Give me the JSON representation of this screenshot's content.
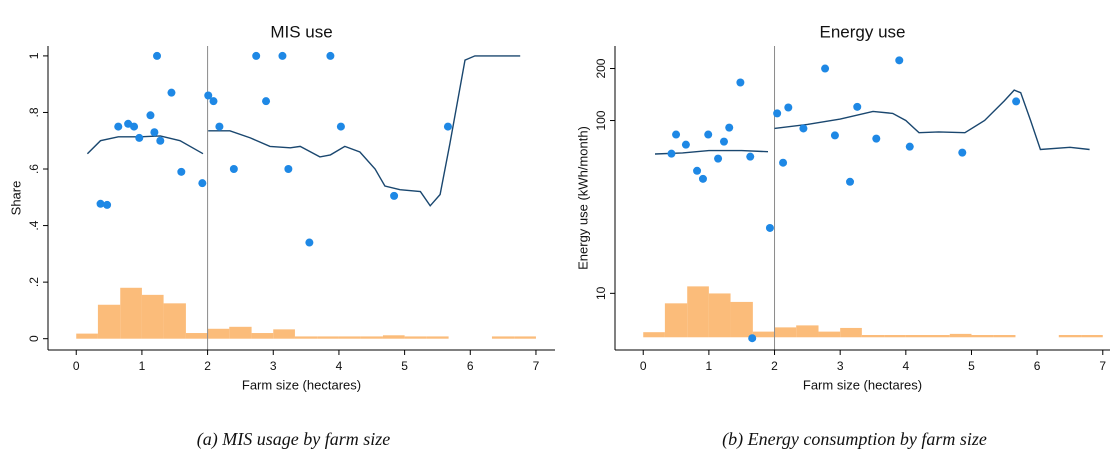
{
  "chart_data": [
    {
      "type": "scatter",
      "title": "MIS use",
      "xlabel": "Farm size (hectares)",
      "ylabel": "Share",
      "caption": "(a) MIS usage by farm size",
      "color": "#1e88e5",
      "x": [
        0.37,
        0.47,
        0.64,
        0.79,
        0.88,
        0.96,
        1.13,
        1.19,
        1.23,
        1.28,
        1.45,
        1.6,
        1.92,
        2.01,
        2.09,
        2.18,
        2.4,
        2.74,
        2.89,
        3.14,
        3.23,
        3.55,
        3.87,
        4.03,
        4.84,
        5.66
      ],
      "values": [
        0.477,
        0.473,
        0.75,
        0.76,
        0.75,
        0.71,
        0.79,
        0.73,
        1.0,
        0.7,
        0.87,
        0.59,
        0.55,
        0.86,
        0.84,
        0.75,
        0.6,
        1.0,
        0.84,
        1.0,
        0.6,
        0.34,
        1.0,
        0.75,
        0.505,
        0.75
      ],
      "line": {
        "color": "#1a476f",
        "x": [
          0.17,
          0.37,
          0.64,
          0.97,
          1.28,
          1.58,
          1.93,
          null,
          2.01,
          2.34,
          2.65,
          2.95,
          3.26,
          3.41,
          3.71,
          3.87,
          4.09,
          4.32,
          4.55,
          4.7,
          4.93,
          5.24,
          5.39,
          5.54,
          5.69,
          5.92,
          6.07,
          6.76
        ],
        "values": [
          0.654,
          0.7,
          0.714,
          0.714,
          0.717,
          0.7,
          0.654,
          null,
          0.735,
          0.735,
          0.71,
          0.68,
          0.675,
          0.68,
          0.643,
          0.65,
          0.68,
          0.66,
          0.6,
          0.54,
          0.527,
          0.52,
          0.47,
          0.51,
          0.69,
          0.985,
          1.0,
          1.0
        ]
      },
      "histogram": {
        "color": "#fbb56c",
        "bins": [
          0,
          0.33,
          0.67,
          1,
          1.33,
          1.67,
          2,
          2.33,
          2.67,
          3,
          3.33,
          3.67,
          4,
          4.33,
          4.67,
          5,
          5.33,
          5.67,
          6,
          6.33,
          6.67,
          7
        ],
        "values": [
          0.018,
          0.12,
          0.18,
          0.155,
          0.125,
          0.02,
          0.035,
          0.042,
          0.02,
          0.033,
          0.008,
          0.008,
          0.008,
          0.008,
          0.012,
          0.008,
          0.008,
          0,
          0,
          0.008,
          0.008
        ],
        "ylim": [
          -0.04,
          1.035
        ]
      },
      "vline": 2,
      "xlim": [
        -0.43,
        7.29
      ],
      "ylim": [
        -0.04,
        1.035
      ],
      "xticks": [
        0,
        1,
        2,
        3,
        4,
        5,
        6,
        7
      ],
      "yticks": [
        0,
        {
          "value": 0.2,
          "label": ".2"
        },
        {
          "value": 0.4,
          "label": ".4"
        },
        {
          "value": 0.6,
          "label": ".6"
        },
        {
          "value": 0.8,
          "label": ".8"
        },
        1
      ],
      "log_y": false
    },
    {
      "type": "scatter",
      "title": "Energy use",
      "xlabel": "Farm size (hectares)",
      "ylabel": "Energy use (kWh/month)",
      "caption": "(b) Energy consumption by farm size",
      "color": "#1e88e5",
      "x": [
        0.43,
        0.5,
        0.65,
        0.82,
        0.91,
        0.99,
        1.14,
        1.23,
        1.31,
        1.48,
        1.63,
        1.66,
        1.93,
        2.04,
        2.13,
        2.21,
        2.44,
        2.77,
        2.92,
        3.15,
        3.26,
        3.55,
        3.9,
        4.06,
        4.86,
        5.68
      ],
      "values": [
        64.3,
        83,
        72.5,
        51.2,
        46,
        83,
        60.2,
        75.5,
        91,
        166,
        61.8,
        5.5,
        23.9,
        110,
        57,
        119,
        90,
        200,
        82,
        44.2,
        120,
        78.6,
        223,
        70.6,
        65.2,
        129
      ],
      "line": {
        "color": "#1a476f",
        "x": [
          0.18,
          0.6,
          1.0,
          1.5,
          1.9,
          null,
          2.0,
          2.5,
          3.0,
          3.5,
          3.8,
          4.0,
          4.2,
          4.5,
          4.9,
          5.2,
          5.5,
          5.65,
          5.75,
          5.9,
          6.05,
          6.5,
          6.8
        ],
        "values": [
          64,
          65,
          67,
          67,
          66,
          null,
          90,
          95,
          102,
          113,
          110,
          100,
          85,
          86,
          85,
          100,
          130,
          150,
          145,
          100,
          68,
          70,
          68
        ]
      },
      "histogram": {
        "color": "#fbb56c",
        "bins": [
          0,
          0.33,
          0.67,
          1,
          1.33,
          1.67,
          2,
          2.33,
          2.67,
          3,
          3.33,
          3.67,
          4,
          4.33,
          4.67,
          5,
          5.33,
          5.67,
          6,
          6.33,
          6.67,
          7
        ],
        "values": [
          0.018,
          0.12,
          0.18,
          0.155,
          0.125,
          0.02,
          0.035,
          0.042,
          0.02,
          0.033,
          0.008,
          0.008,
          0.008,
          0.008,
          0.012,
          0.008,
          0.008,
          0,
          0,
          0.008,
          0.008
        ],
        "ylim": [
          -0.045,
          1.03
        ]
      },
      "vline": 2,
      "xlim": [
        -0.43,
        7.11
      ],
      "ylim": [
        4.7,
        270
      ],
      "xticks": [
        0,
        1,
        2,
        3,
        4,
        5,
        6,
        7
      ],
      "yticks": [
        10,
        100,
        200
      ],
      "log_y": true
    }
  ]
}
